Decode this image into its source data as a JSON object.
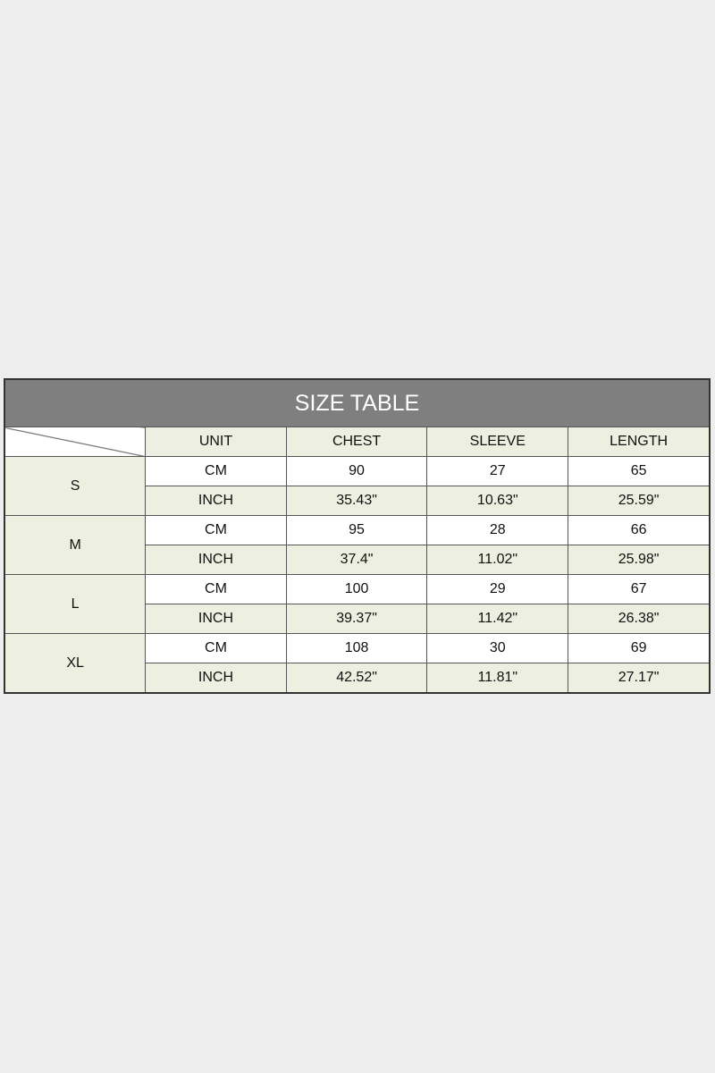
{
  "title": "SIZE TABLE",
  "headers": [
    "UNIT",
    "CHEST",
    "SLEEVE",
    "LENGTH"
  ],
  "sizes": [
    {
      "size": "S",
      "rows": [
        [
          "CM",
          "90",
          "27",
          "65"
        ],
        [
          "INCH",
          "35.43\"",
          "10.63\"",
          "25.59\""
        ]
      ]
    },
    {
      "size": "M",
      "rows": [
        [
          "CM",
          "95",
          "28",
          "66"
        ],
        [
          "INCH",
          "37.4\"",
          "11.02\"",
          "25.98\""
        ]
      ]
    },
    {
      "size": "L",
      "rows": [
        [
          "CM",
          "100",
          "29",
          "67"
        ],
        [
          "INCH",
          "39.37\"",
          "11.42\"",
          "26.38\""
        ]
      ]
    },
    {
      "size": "XL",
      "rows": [
        [
          "CM",
          "108",
          "30",
          "69"
        ],
        [
          "INCH",
          "42.52\"",
          "11.81\"",
          "27.17\""
        ]
      ]
    }
  ],
  "colors": {
    "header": "#7f7f7f",
    "green": "#edefe0"
  }
}
